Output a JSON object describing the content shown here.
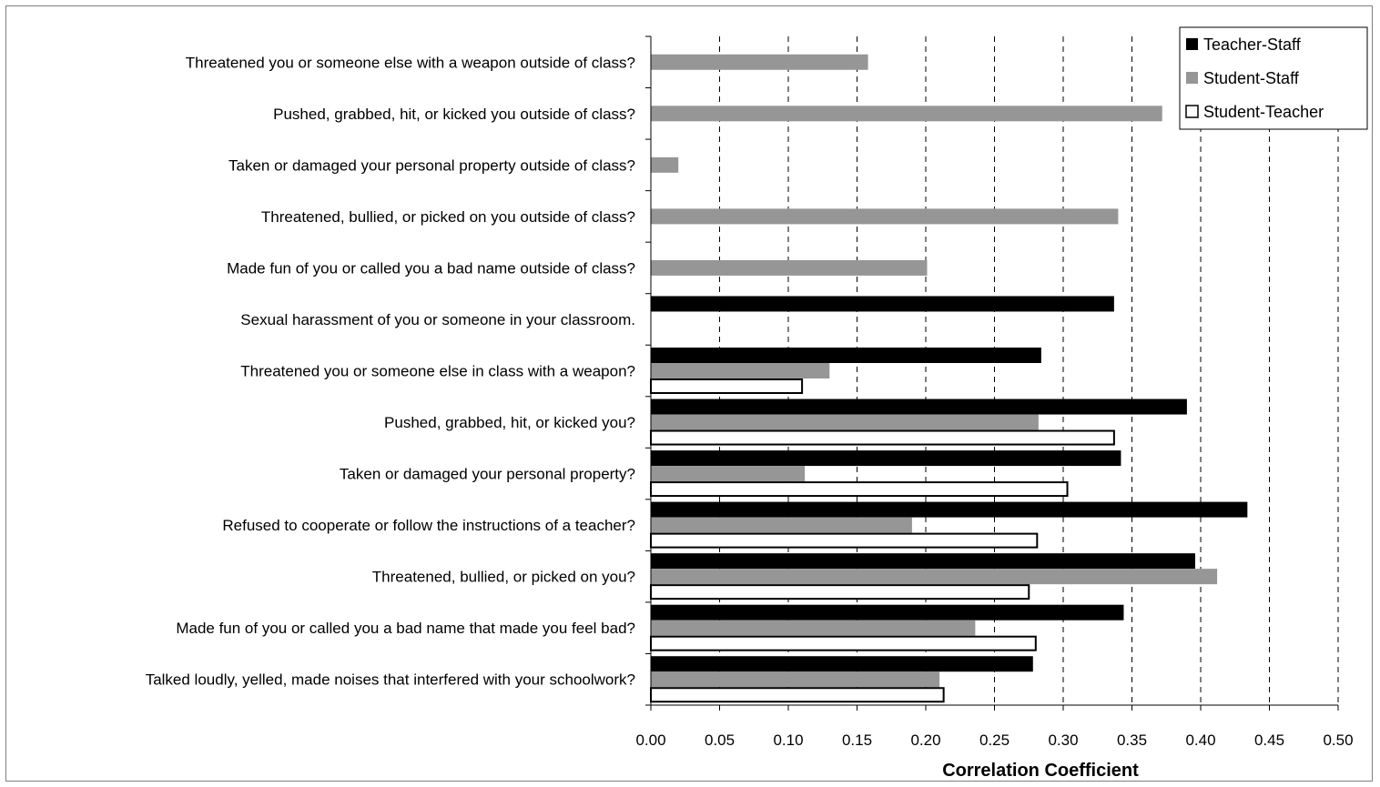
{
  "chart_data": {
    "type": "bar",
    "orientation": "horizontal",
    "xlabel": "Correlation Coefficient",
    "xlim": [
      0,
      0.5
    ],
    "xticks": [
      "0.00",
      "0.05",
      "0.10",
      "0.15",
      "0.20",
      "0.25",
      "0.30",
      "0.35",
      "0.40",
      "0.45",
      "0.50"
    ],
    "grid": "vertical dashed",
    "legend_position": "top-right",
    "categories": [
      "Threatened you or someone else with a weapon outside of class?",
      "Pushed, grabbed, hit, or kicked you outside of class?",
      "Taken or damaged your personal property outside of class?",
      "Threatened, bullied, or picked on you outside of class?",
      "Made fun of you or called you a bad name outside of class?",
      "Sexual harassment of you or someone in your classroom.",
      "Threatened you or someone else in class with a weapon?",
      "Pushed, grabbed, hit, or kicked you?",
      "Taken or damaged your personal property?",
      "Refused to cooperate or follow the instructions of a teacher?",
      "Threatened, bullied, or picked on you?",
      "Made fun of you or called you a bad name that made you feel bad?",
      "Talked loudly, yelled, made noises that interfered with your schoolwork?"
    ],
    "series": [
      {
        "name": "Teacher-Staff",
        "color": "#000000",
        "values": [
          null,
          null,
          null,
          null,
          null,
          0.337,
          0.284,
          0.39,
          0.342,
          0.434,
          0.396,
          0.344,
          0.278
        ]
      },
      {
        "name": "Student-Staff",
        "color": "#969696",
        "values": [
          0.158,
          0.372,
          0.02,
          0.34,
          0.201,
          null,
          0.13,
          0.282,
          0.112,
          0.19,
          0.412,
          0.236,
          0.21
        ]
      },
      {
        "name": "Student-Teacher",
        "color": "#ffffff",
        "values": [
          null,
          null,
          null,
          null,
          null,
          null,
          0.11,
          0.337,
          0.303,
          0.281,
          0.275,
          0.28,
          0.213
        ]
      }
    ]
  }
}
